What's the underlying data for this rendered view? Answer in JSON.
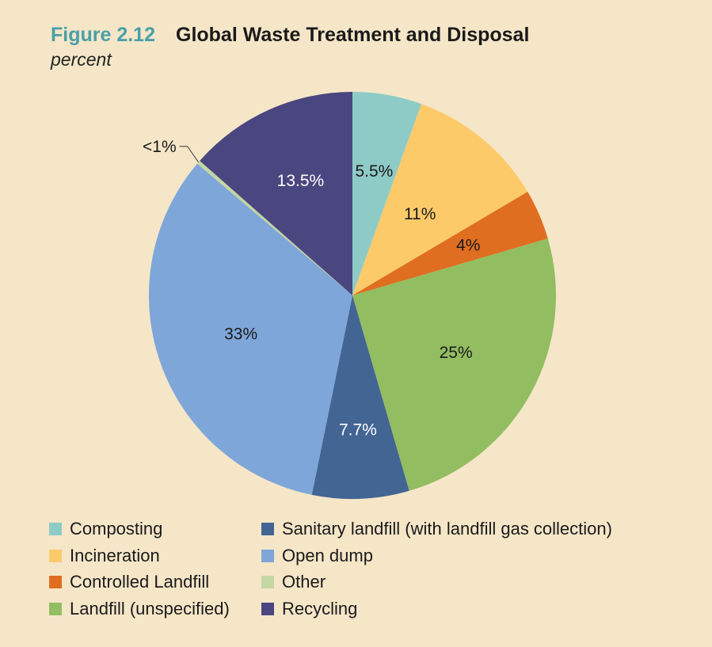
{
  "header": {
    "figure_number": "Figure 2.12",
    "title": "Global Waste Treatment and Disposal",
    "subtitle": "percent"
  },
  "chart_data": {
    "type": "pie",
    "title": "Global Waste Treatment and Disposal",
    "subtitle": "percent",
    "slices": [
      {
        "name": "Composting",
        "value": 5.5,
        "label": "5.5%",
        "color": "#8ecbc7",
        "label_color": "#1a1a1a"
      },
      {
        "name": "Incineration",
        "value": 11,
        "label": "11%",
        "color": "#fdca6a",
        "label_color": "#1a1a1a"
      },
      {
        "name": "Controlled Landfill",
        "value": 4,
        "label": "4%",
        "color": "#df6e21",
        "label_color": "#1a1a1a"
      },
      {
        "name": "Landfill (unspecified)",
        "value": 25,
        "label": "25%",
        "color": "#93bd61",
        "label_color": "#1a1a1a"
      },
      {
        "name": "Sanitary landfill (with landfill gas collection)",
        "value": 7.7,
        "label": "7.7%",
        "color": "#436594",
        "label_color": "#ffffff"
      },
      {
        "name": "Open dump",
        "value": 33,
        "label": "33%",
        "color": "#7ea6d9",
        "label_color": "#1a1a1a"
      },
      {
        "name": "Other",
        "value": 0.3,
        "label": "<1%",
        "color": "#c3d7a3",
        "label_color": "#1a1a1a"
      },
      {
        "name": "Recycling",
        "value": 13.5,
        "label": "13.5%",
        "color": "#4a4680",
        "label_color": "#ffffff"
      }
    ],
    "legend": {
      "placement": "bottom",
      "columns": [
        [
          "Composting",
          "Incineration",
          "Controlled Landfill",
          "Landfill (unspecified)"
        ],
        [
          "Sanitary landfill (with landfill gas collection)",
          "Open dump",
          "Other",
          "Recycling"
        ]
      ]
    }
  }
}
